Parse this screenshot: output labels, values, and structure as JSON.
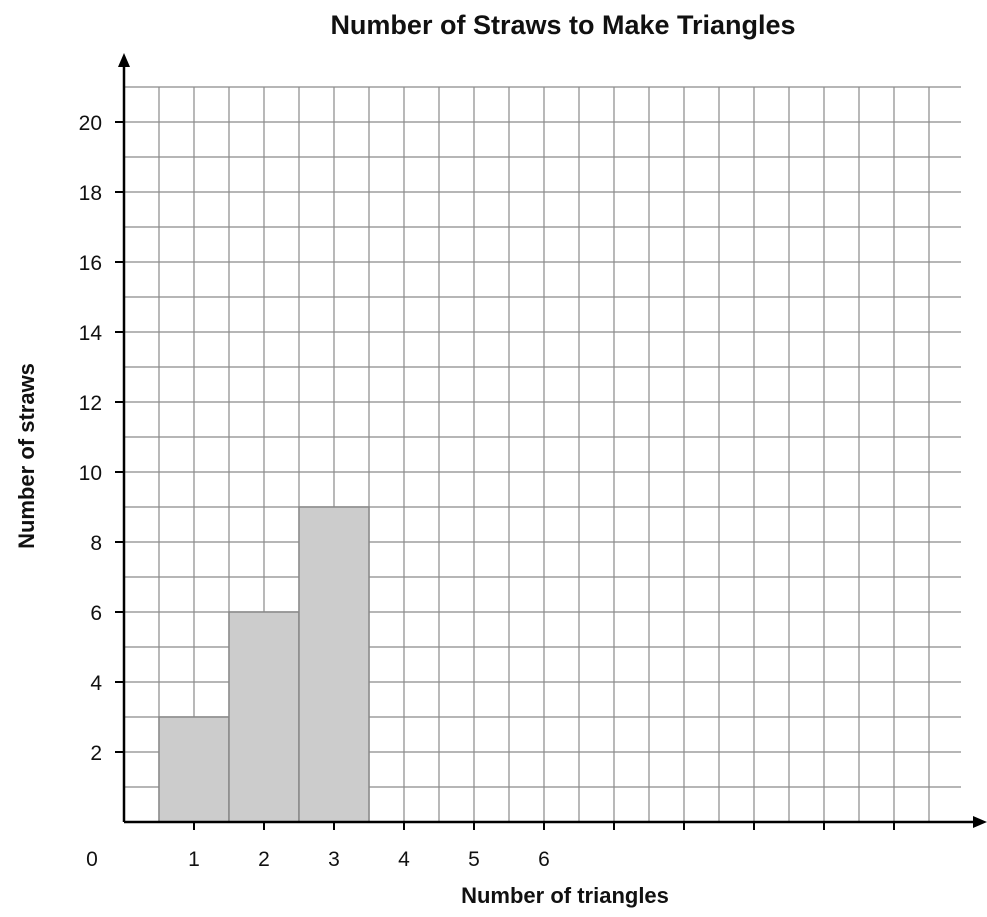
{
  "chart_data": {
    "type": "bar",
    "title": "Number of Straws to Make Triangles",
    "xlabel": "Number of triangles",
    "ylabel": "Number of straws",
    "categories": [
      "1",
      "2",
      "3",
      "4",
      "5",
      "6"
    ],
    "values": [
      3,
      6,
      9,
      null,
      null,
      null
    ],
    "x_ticks": [
      "0",
      "1",
      "2",
      "3",
      "4",
      "5",
      "6"
    ],
    "y_ticks": [
      2,
      4,
      6,
      8,
      10,
      12,
      14,
      16,
      18,
      20
    ],
    "ylim": [
      0,
      21
    ],
    "grid": true,
    "colors": {
      "bar_fill": "#cccccc",
      "bar_stroke": "#888888",
      "grid": "#8a8a8a",
      "axis": "#000000"
    }
  }
}
